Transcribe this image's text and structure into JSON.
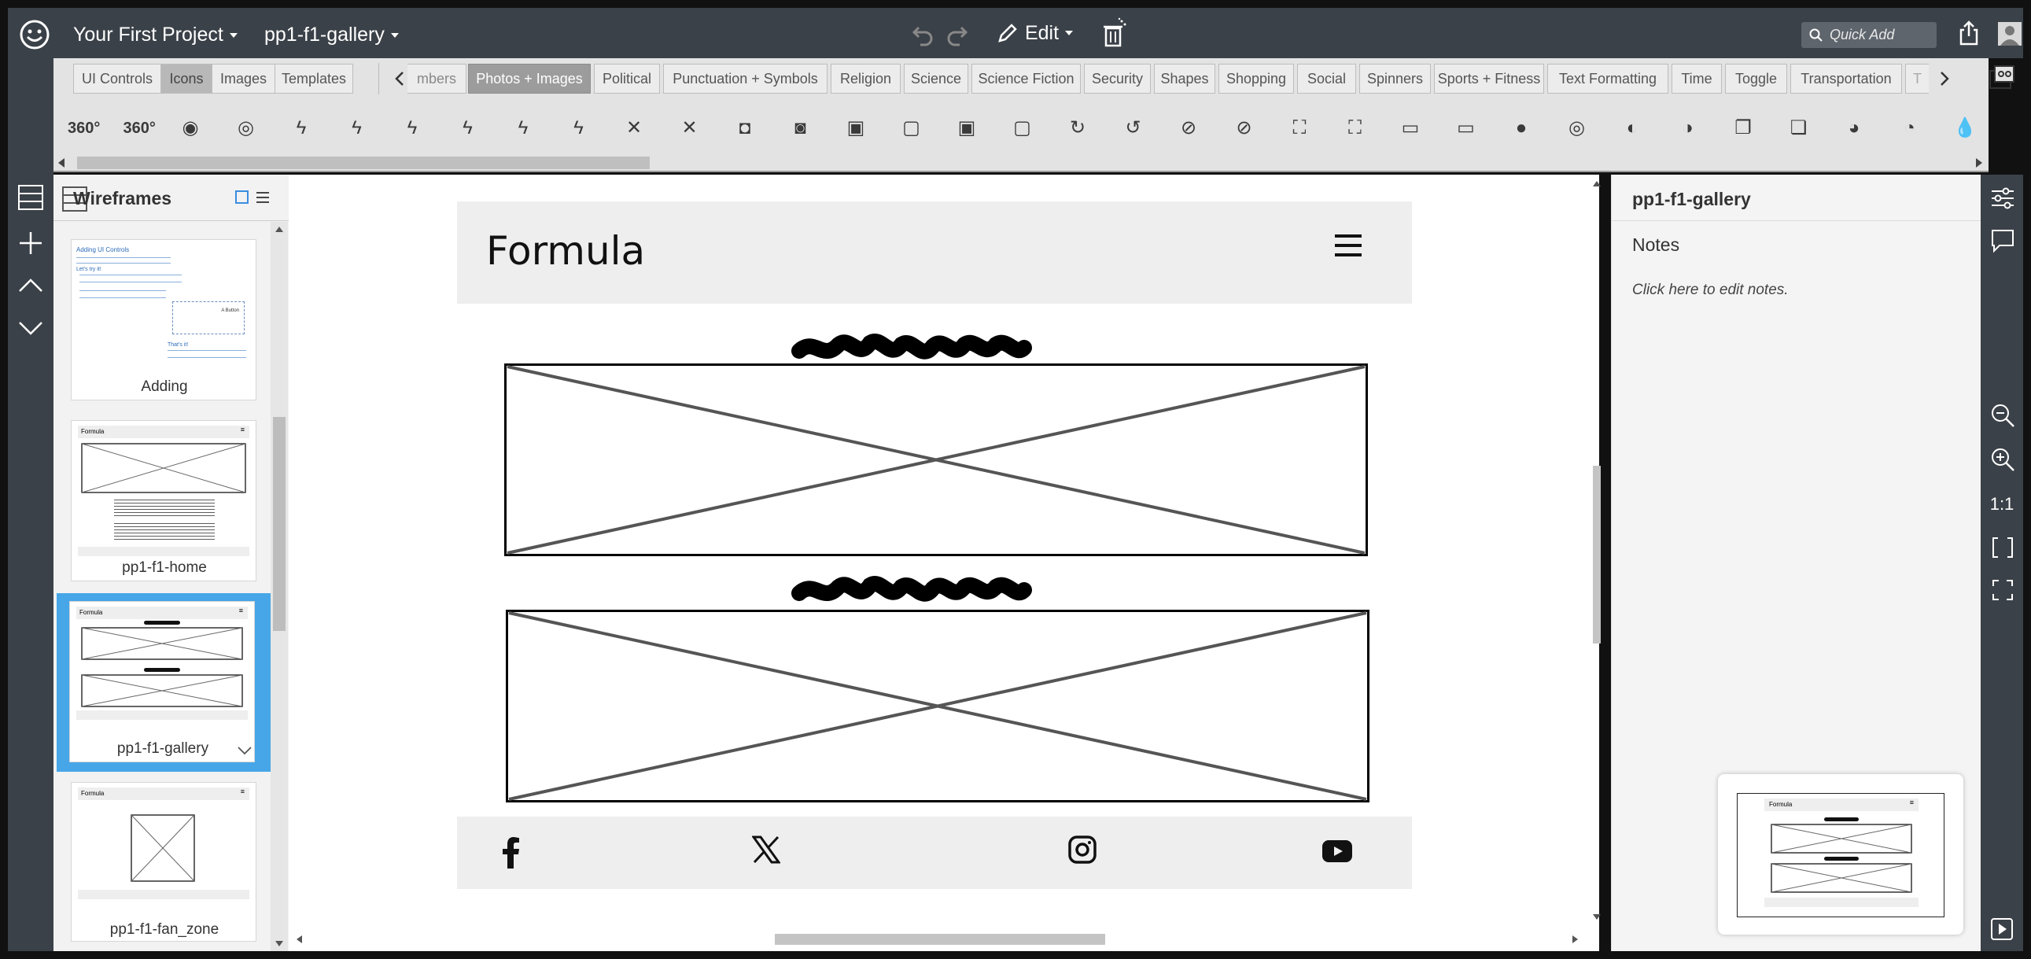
{
  "topbar": {
    "project_name": "Your First Project",
    "page_name": "pp1-f1-gallery",
    "edit_label": "Edit",
    "quick_add_placeholder": "Quick Add"
  },
  "library_tabs": [
    "UI Controls",
    "Icons",
    "Images",
    "Templates"
  ],
  "library_tabs_active": "Icons",
  "category_tabs": [
    "mbers",
    "Photos + Images",
    "Political",
    "Punctuation + Symbols",
    "Religion",
    "Science",
    "Science Fiction",
    "Security",
    "Shapes",
    "Shopping",
    "Social",
    "Spinners",
    "Sports + Fitness",
    "Text Formatting",
    "Time",
    "Toggle",
    "Transportation",
    "T"
  ],
  "category_selected": "Photos + Images",
  "icon_strip": [
    {
      "name": "360-icon",
      "glyph": "360°"
    },
    {
      "name": "360-outline-icon",
      "glyph": "360°"
    },
    {
      "name": "aperture-icon",
      "glyph": "◉"
    },
    {
      "name": "aperture-outline-icon",
      "glyph": "◎"
    },
    {
      "name": "auto-flash-icon",
      "glyph": "ϟ"
    },
    {
      "name": "auto-flash-outline-icon",
      "glyph": "ϟ"
    },
    {
      "name": "auto-flash-a-icon",
      "glyph": "ϟ"
    },
    {
      "name": "auto-flash-a-outline-icon",
      "glyph": "ϟ"
    },
    {
      "name": "flash-icon",
      "glyph": "ϟ"
    },
    {
      "name": "flash-outline-icon",
      "glyph": "ϟ"
    },
    {
      "name": "flash-off-icon",
      "glyph": "✕"
    },
    {
      "name": "flash-off-outline-icon",
      "glyph": "✕"
    },
    {
      "name": "camera-icon",
      "glyph": "◘"
    },
    {
      "name": "camera-outline-icon",
      "glyph": "◙"
    },
    {
      "name": "webcam-icon",
      "glyph": "▣"
    },
    {
      "name": "webcam-outline-icon",
      "glyph": "▢"
    },
    {
      "name": "camera-retro-icon",
      "glyph": "▣"
    },
    {
      "name": "camera-retro-outline-icon",
      "glyph": "▢"
    },
    {
      "name": "camera-rotate-icon",
      "glyph": "↻"
    },
    {
      "name": "camera-rotate-outline-icon",
      "glyph": "↺"
    },
    {
      "name": "camera-off-icon",
      "glyph": "⊘"
    },
    {
      "name": "camera-off-outline-icon",
      "glyph": "⊘"
    },
    {
      "name": "screenshot-icon",
      "glyph": "⛶"
    },
    {
      "name": "screenshot-outline-icon",
      "glyph": "⛶"
    },
    {
      "name": "laptop-icon",
      "glyph": "▭"
    },
    {
      "name": "laptop-outline-icon",
      "glyph": "▭"
    },
    {
      "name": "lens-icon",
      "glyph": "●"
    },
    {
      "name": "lens-outline-icon",
      "glyph": "◎"
    },
    {
      "name": "contrast-icon",
      "glyph": "◐"
    },
    {
      "name": "contrast-outline-icon",
      "glyph": "◑"
    },
    {
      "name": "copy-icon",
      "glyph": "❐"
    },
    {
      "name": "copy-outline-icon",
      "glyph": "❏"
    },
    {
      "name": "palette-icon",
      "glyph": "◕"
    },
    {
      "name": "palette-outline-icon",
      "glyph": "◔"
    },
    {
      "name": "drop-icon",
      "glyph": "💧"
    }
  ],
  "wireframes_panel": {
    "title": "Wireframes",
    "items": [
      {
        "label": "Adding"
      },
      {
        "label": "pp1-f1-home"
      },
      {
        "label": "pp1-f1-gallery"
      },
      {
        "label": "pp1-f1-fan_zone"
      }
    ],
    "thumb_header": "Formula",
    "adding_thumb_heading": "Adding UI Controls",
    "adding_thumb_subheading": "Let's try it!",
    "adding_thumb_footer": "That's it!",
    "adding_thumb_button": "A Button"
  },
  "mockup": {
    "header_title": "Formula"
  },
  "right_panel": {
    "title": "pp1-f1-gallery",
    "notes_label": "Notes",
    "notes_placeholder": "Click here to edit notes."
  },
  "right_rail": {
    "zoom_reset": "1:1"
  },
  "colors": {
    "chrome": "#3b4148",
    "selection": "#47a6e8",
    "panel": "#f2f2f2"
  }
}
